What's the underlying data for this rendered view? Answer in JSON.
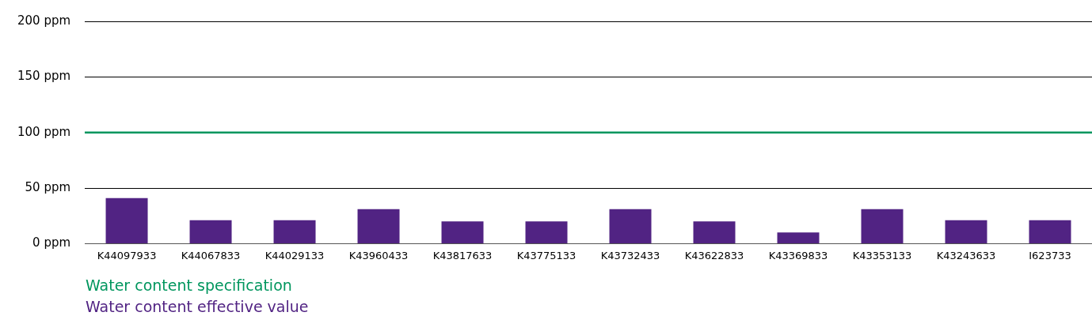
{
  "chart_data": {
    "type": "bar",
    "categories": [
      "K44097933",
      "K44067833",
      "K44029133",
      "K43960433",
      "K43817633",
      "K43775133",
      "K43732433",
      "K43622833",
      "K43369833",
      "K43353133",
      "K43243633",
      "I623733"
    ],
    "series": [
      {
        "name": "Water content effective value",
        "color": "#512383",
        "values": [
          41,
          21,
          21,
          31,
          20,
          20,
          31,
          20,
          10,
          31,
          21,
          21
        ]
      }
    ],
    "ylim": [
      0,
      200
    ],
    "yticks": [
      {
        "value": 0,
        "label": "0 ppm"
      },
      {
        "value": 50,
        "label": "50 ppm"
      },
      {
        "value": 100,
        "label": "100 ppm"
      },
      {
        "value": 150,
        "label": "150 ppm"
      },
      {
        "value": 200,
        "label": "200 ppm"
      }
    ],
    "grid": "y",
    "legend": "bottom",
    "ref_lines": [
      {
        "axis": "y",
        "value": 100,
        "label": "Water content specification",
        "color": "#00965e"
      }
    ]
  }
}
